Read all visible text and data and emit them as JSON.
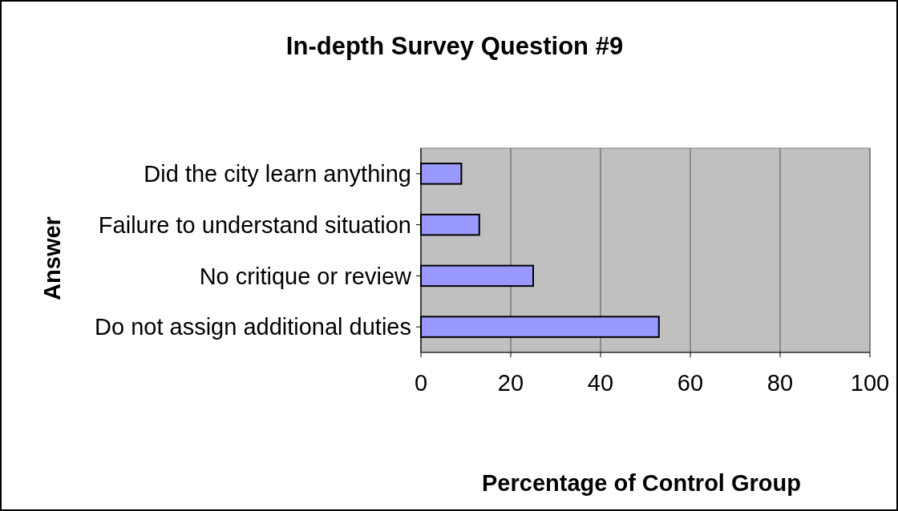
{
  "chart_data": {
    "type": "bar",
    "orientation": "horizontal",
    "title": "In-depth Survey Question #9",
    "xlabel": "Percentage of Control Group",
    "ylabel": "Answer",
    "categories": [
      "Did the city learn anything",
      "Failure to understand situation",
      "No critique or review",
      "Do not assign additional duties"
    ],
    "values": [
      9,
      13,
      25,
      53
    ],
    "color": "#9999ff",
    "xlim": [
      0,
      100
    ],
    "xticks": [
      0,
      20,
      40,
      60,
      80,
      100
    ],
    "grid": "x",
    "legend": false
  }
}
